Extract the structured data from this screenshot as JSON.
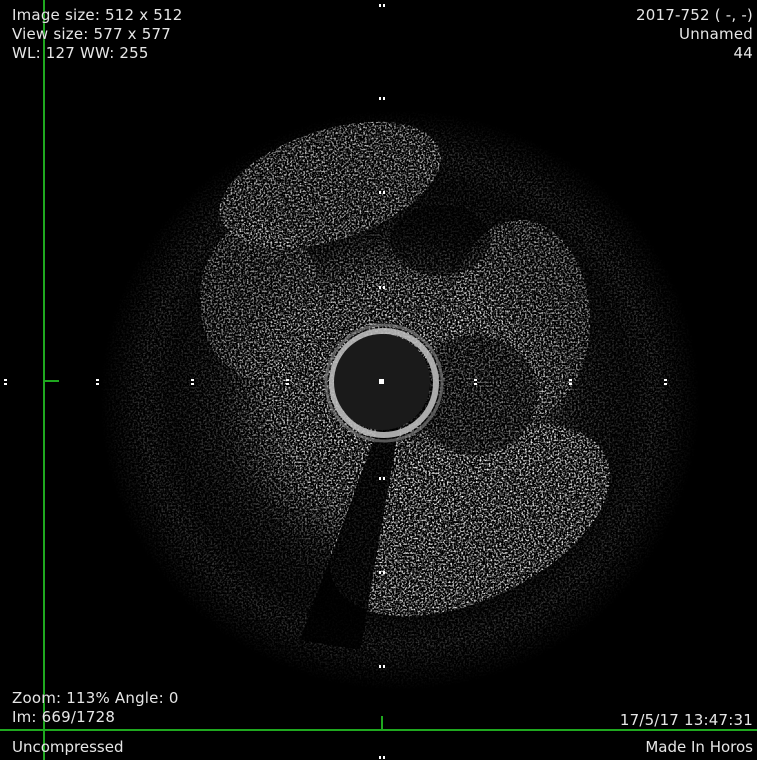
{
  "overlay": {
    "top_left": [
      "Image size: 512 x 512",
      "View size: 577 x 577",
      "WL: 127 WW: 255"
    ],
    "top_right": [
      "2017-752 ( -, -)",
      "Unnamed",
      "44"
    ],
    "bottom_left": [
      "Zoom: 113% Angle: 0",
      "Im: 669/1728"
    ],
    "bottom_right": "17/5/17 13:47:31"
  },
  "status_bar": {
    "left": "Uncompressed",
    "right": "Made In Horos"
  },
  "colors": {
    "crosshair": "#1fa81f",
    "background": "#000000",
    "overlay_text": "#e6e6e6"
  }
}
